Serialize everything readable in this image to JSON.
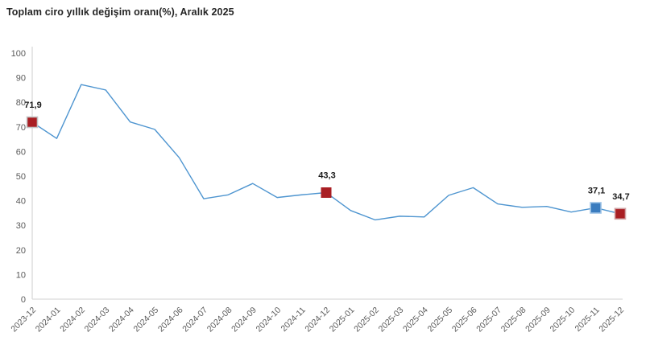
{
  "chart_data": {
    "type": "line",
    "title": "Toplam ciro yıllık değişim oranı(%), Aralık 2025",
    "xlabel": "",
    "ylabel": "",
    "ylim": [
      0,
      100
    ],
    "ytick_step": 10,
    "grid": false,
    "legend": "none",
    "x": [
      "2023-12",
      "2024-01",
      "2024-02",
      "2024-03",
      "2024-04",
      "2024-05",
      "2024-06",
      "2024-07",
      "2024-08",
      "2024-09",
      "2024-10",
      "2024-11",
      "2024-12",
      "2025-01",
      "2025-02",
      "2025-03",
      "2025-04",
      "2025-05",
      "2025-06",
      "2025-07",
      "2025-08",
      "2025-09",
      "2025-10",
      "2025-11",
      "2025-12"
    ],
    "values": [
      71.9,
      65.3,
      87.2,
      85.0,
      72.0,
      69.0,
      57.5,
      40.8,
      42.4,
      47.0,
      41.3,
      42.4,
      43.3,
      36.0,
      32.2,
      33.7,
      33.4,
      42.2,
      45.3,
      38.7,
      37.3,
      37.7,
      35.4,
      37.1,
      34.7
    ],
    "line_color": "#4e95d0",
    "axis_color": "#d9d9d9",
    "tick_label_color": "#595959",
    "value_label_color": "#1a1a1a",
    "highlighted_points": [
      {
        "x": "2023-12",
        "value": 71.9,
        "label": "71,9",
        "marker_color": "#a91e23",
        "marker_stroke": "#c4c4c4"
      },
      {
        "x": "2024-12",
        "value": 43.3,
        "label": "43,3",
        "marker_color": "#a91e23",
        "marker_stroke": "none"
      },
      {
        "x": "2025-11",
        "value": 37.1,
        "label": "37,1",
        "marker_color": "#3a7cbf",
        "marker_stroke": "#9dc3e6"
      },
      {
        "x": "2025-12",
        "value": 34.7,
        "label": "34,7",
        "marker_color": "#a91e23",
        "marker_stroke": "#d0a3a5"
      }
    ]
  }
}
